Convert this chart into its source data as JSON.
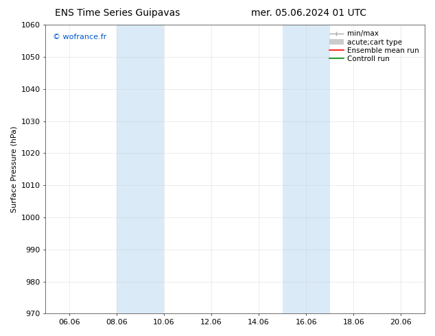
{
  "title_left": "ENS Time Series Guipavas",
  "title_right": "mer. 05.06.2024 01 UTC",
  "ylabel": "Surface Pressure (hPa)",
  "ylim": [
    970,
    1060
  ],
  "yticks": [
    970,
    980,
    990,
    1000,
    1010,
    1020,
    1030,
    1040,
    1050,
    1060
  ],
  "xlim": [
    5.0,
    21.0
  ],
  "xtick_labels": [
    "06.06",
    "08.06",
    "10.06",
    "12.06",
    "14.06",
    "16.06",
    "18.06",
    "20.06"
  ],
  "xtick_positions": [
    6,
    8,
    10,
    12,
    14,
    16,
    18,
    20
  ],
  "shaded_bands": [
    {
      "xmin": 8.0,
      "xmax": 10.0,
      "color": "#daeaf7"
    },
    {
      "xmin": 15.0,
      "xmax": 17.0,
      "color": "#daeaf7"
    }
  ],
  "watermark": "© wofrance.fr",
  "watermark_color": "#0055cc",
  "background_color": "#ffffff",
  "plot_bg_color": "#ffffff",
  "grid_color": "#c8c8c8",
  "legend_entries": [
    {
      "label": "min/max",
      "color": "#aaaaaa",
      "lw": 1.0
    },
    {
      "label": "acute;cart type",
      "color": "#cccccc",
      "lw": 5
    },
    {
      "label": "Ensemble mean run",
      "color": "#ff0000",
      "lw": 1.2
    },
    {
      "label": "Controll run",
      "color": "#008800",
      "lw": 1.2
    }
  ],
  "title_fontsize": 10,
  "axis_label_fontsize": 8,
  "tick_fontsize": 8,
  "legend_fontsize": 7.5,
  "watermark_fontsize": 8
}
